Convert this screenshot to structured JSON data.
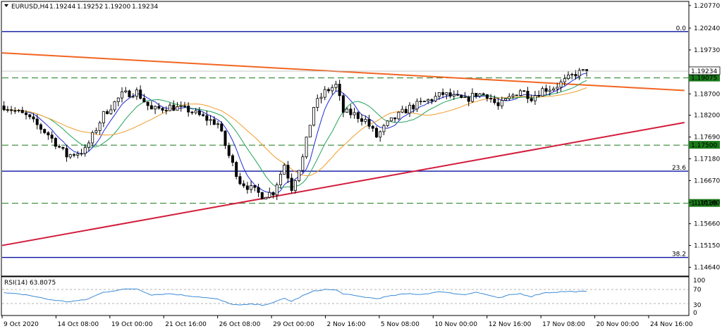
{
  "header": {
    "symbol": "EURUSD,H4",
    "open": "1.19244",
    "high": "1.19252",
    "low": "1.19200",
    "close": "1.19234"
  },
  "rsi_panel": {
    "label": "RSI(14) 63.8075",
    "scale": [
      "100",
      "70",
      "30",
      "0"
    ]
  },
  "colors": {
    "candle": "#000000",
    "blue_level": "#0a14a0",
    "green_level": "#1a7a1a",
    "orange_trend": "#f26522",
    "red_trend": "#d31c3c",
    "ma_fast": "#1f2ad6",
    "ma_mid": "#22a45a",
    "ma_slow": "#f39c2b",
    "rsi_line": "#3d8bd6"
  },
  "chart_data": {
    "type": "candlestick",
    "symbol": "EURUSD",
    "timeframe": "H4",
    "ylim": [
      1.1445,
      1.2085
    ],
    "y_ticks": [
      "1.20770",
      "1.20240",
      "1.19730",
      "1.19210",
      "1.18700",
      "1.18200",
      "1.17690",
      "1.17180",
      "1.16670",
      "1.16160",
      "1.15660",
      "1.15150",
      "1.14640"
    ],
    "x_ticks": [
      "9 Oct 2020",
      "14 Oct 08:00",
      "19 Oct 00:00",
      "21 Oct 16:00",
      "26 Oct 08:00",
      "29 Oct 00:00",
      "2 Nov 16:00",
      "5 Nov 08:00",
      "10 Nov 00:00",
      "12 Nov 16:00",
      "17 Nov 08:00",
      "20 Nov 00:00",
      "24 Nov 16:00"
    ],
    "horizontal_levels": [
      {
        "price": 1.2016,
        "label": "0.0",
        "style": "solid",
        "color": "blue"
      },
      {
        "price": 1.1689,
        "label": "23.6",
        "style": "solid",
        "color": "blue"
      },
      {
        "price": 1.1487,
        "label": "38.2",
        "style": "solid",
        "color": "blue"
      },
      {
        "price": 1.19075,
        "label": "1.19075",
        "style": "dashed",
        "color": "green"
      },
      {
        "price": 1.175,
        "label": "1.17500",
        "style": "dashed",
        "color": "green"
      },
      {
        "price": 1.16138,
        "label": "1.16138",
        "style": "dashed",
        "color": "green"
      }
    ],
    "current_price": {
      "price": 1.19234,
      "label": "1.19234"
    },
    "trendlines": [
      {
        "name": "resistance",
        "color": "orange",
        "from": [
          0,
          1.1966
        ],
        "to": [
          185,
          1.1878
        ]
      },
      {
        "name": "support",
        "color": "red",
        "from": [
          0,
          1.1515
        ],
        "to": [
          185,
          1.1803
        ]
      }
    ],
    "price_path": [
      [
        0,
        1.1842
      ],
      [
        6,
        1.1818
      ],
      [
        12,
        1.1775
      ],
      [
        17,
        1.1725
      ],
      [
        22,
        1.1738
      ],
      [
        27,
        1.1822
      ],
      [
        32,
        1.1868
      ],
      [
        36,
        1.1875
      ],
      [
        40,
        1.1832
      ],
      [
        45,
        1.184
      ],
      [
        50,
        1.1832
      ],
      [
        54,
        1.1815
      ],
      [
        58,
        1.18
      ],
      [
        61,
        1.1725
      ],
      [
        64,
        1.1665
      ],
      [
        67,
        1.1648
      ],
      [
        70,
        1.1632
      ],
      [
        73,
        1.164
      ],
      [
        76,
        1.1705
      ],
      [
        78,
        1.165
      ],
      [
        81,
        1.172
      ],
      [
        84,
        1.184
      ],
      [
        87,
        1.1875
      ],
      [
        90,
        1.189
      ],
      [
        92,
        1.1828
      ],
      [
        95,
        1.1822
      ],
      [
        98,
        1.1808
      ],
      [
        101,
        1.177
      ],
      [
        104,
        1.18
      ],
      [
        107,
        1.182
      ],
      [
        110,
        1.1838
      ],
      [
        113,
        1.1848
      ],
      [
        116,
        1.1858
      ],
      [
        119,
        1.187
      ],
      [
        122,
        1.1862
      ],
      [
        125,
        1.1855
      ],
      [
        128,
        1.187
      ],
      [
        131,
        1.1868
      ],
      [
        134,
        1.184
      ],
      [
        137,
        1.186
      ],
      [
        140,
        1.188
      ],
      [
        143,
        1.1862
      ],
      [
        146,
        1.188
      ],
      [
        149,
        1.1885
      ],
      [
        152,
        1.19
      ],
      [
        155,
        1.1918
      ],
      [
        158,
        1.1923
      ]
    ],
    "rsi": {
      "name": "RSI(14)",
      "value": 63.8075,
      "ylim": [
        0,
        100
      ],
      "levels": [
        70,
        30
      ],
      "path": [
        [
          0,
          60
        ],
        [
          6,
          55
        ],
        [
          12,
          42
        ],
        [
          17,
          35
        ],
        [
          22,
          40
        ],
        [
          27,
          62
        ],
        [
          32,
          70
        ],
        [
          36,
          72
        ],
        [
          40,
          55
        ],
        [
          45,
          58
        ],
        [
          50,
          52
        ],
        [
          54,
          48
        ],
        [
          58,
          42
        ],
        [
          61,
          30
        ],
        [
          64,
          25
        ],
        [
          67,
          28
        ],
        [
          70,
          26
        ],
        [
          73,
          32
        ],
        [
          76,
          45
        ],
        [
          78,
          36
        ],
        [
          81,
          52
        ],
        [
          84,
          65
        ],
        [
          87,
          70
        ],
        [
          90,
          68
        ],
        [
          92,
          58
        ],
        [
          95,
          52
        ],
        [
          98,
          48
        ],
        [
          101,
          44
        ],
        [
          104,
          50
        ],
        [
          107,
          55
        ],
        [
          110,
          58
        ],
        [
          113,
          56
        ],
        [
          116,
          60
        ],
        [
          119,
          64
        ],
        [
          122,
          58
        ],
        [
          125,
          56
        ],
        [
          128,
          62
        ],
        [
          131,
          55
        ],
        [
          134,
          45
        ],
        [
          137,
          54
        ],
        [
          140,
          58
        ],
        [
          143,
          50
        ],
        [
          146,
          60
        ],
        [
          149,
          62
        ],
        [
          152,
          64
        ],
        [
          155,
          64
        ],
        [
          158,
          64
        ]
      ]
    }
  }
}
